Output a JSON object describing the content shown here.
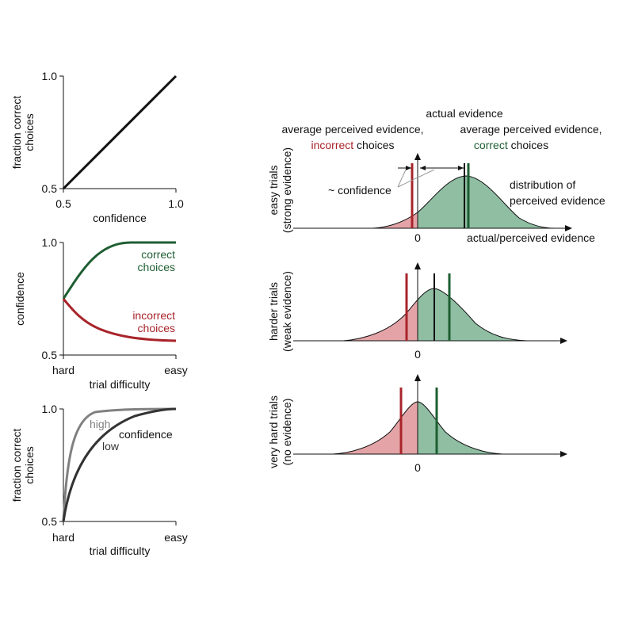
{
  "colors": {
    "black": "#111111",
    "green": "#1e5e32",
    "red": "#a8242a",
    "gray_high": "#808080",
    "green_fill": "#8fbea2",
    "red_fill": "#e4a4a7"
  },
  "panel_a": {
    "y_tick_top": "1.0",
    "y_tick_bottom": "0.5",
    "x_tick_left": "0.5",
    "x_tick_right": "1.0",
    "xlabel": "confidence",
    "ylabel_line1": "fraction correct",
    "ylabel_line2": "choices"
  },
  "panel_b": {
    "y_tick_top": "1.0",
    "y_tick_bottom": "0.5",
    "x_tick_left": "hard",
    "x_tick_right": "easy",
    "xlabel": "trial difficulty",
    "ylabel": "confidence",
    "correct_line1": "correct",
    "correct_line2": "choices",
    "incorrect_line1": "incorrect",
    "incorrect_line2": "choices"
  },
  "panel_c": {
    "y_tick_top": "1.0",
    "y_tick_bottom": "0.5",
    "x_tick_left": "hard",
    "x_tick_right": "easy",
    "xlabel": "trial difficulty",
    "ylabel_line1": "fraction correct",
    "ylabel_line2": "choices",
    "high_label": "high",
    "low_label": "low",
    "confidence_label": "confidence"
  },
  "right": {
    "actual_evidence": "actual evidence",
    "avg_incorrect_line1": "average perceived evidence,",
    "avg_incorrect_word": "incorrect",
    "avg_incorrect_suffix": " choices",
    "avg_correct_line1": "average perceived evidence,",
    "avg_correct_word": "correct",
    "avg_correct_suffix": " choices",
    "confidence_note": "~ confidence",
    "distribution_line1": "distribution of",
    "distribution_line2": "perceived evidence",
    "axis_label": "actual/perceived evidence",
    "zero": "0",
    "row1_line1": "easy trials",
    "row1_line2": "(strong evidence)",
    "row2_line1": "harder trials",
    "row2_line2": "(weak evidence)",
    "row3_line1": "very hard trials",
    "row3_line2": "(no evidence)"
  },
  "chart_data": [
    {
      "type": "line",
      "xlim": [
        0.5,
        1.0
      ],
      "ylim": [
        0.5,
        1.0
      ],
      "xlabel": "confidence",
      "ylabel": "fraction correct choices",
      "series": [
        {
          "x": [
            0.5,
            1.0
          ],
          "values": [
            0.5,
            1.0
          ]
        }
      ]
    },
    {
      "type": "line",
      "categories": [
        "hard",
        "easy"
      ],
      "ylim": [
        0.5,
        1.0
      ],
      "xlabel": "trial difficulty",
      "ylabel": "confidence",
      "series": [
        {
          "name": "correct choices",
          "values_start": 0.75,
          "values_end": 1.0
        },
        {
          "name": "incorrect choices",
          "values_start": 0.75,
          "values_end": 0.56
        }
      ]
    },
    {
      "type": "line",
      "categories": [
        "hard",
        "easy"
      ],
      "ylim": [
        0.5,
        1.0
      ],
      "xlabel": "trial difficulty",
      "ylabel": "fraction correct choices",
      "series": [
        {
          "name": "high",
          "values_start": 0.5,
          "values_end": 1.0
        },
        {
          "name": "low",
          "values_start": 0.5,
          "values_end": 1.0
        }
      ]
    }
  ]
}
